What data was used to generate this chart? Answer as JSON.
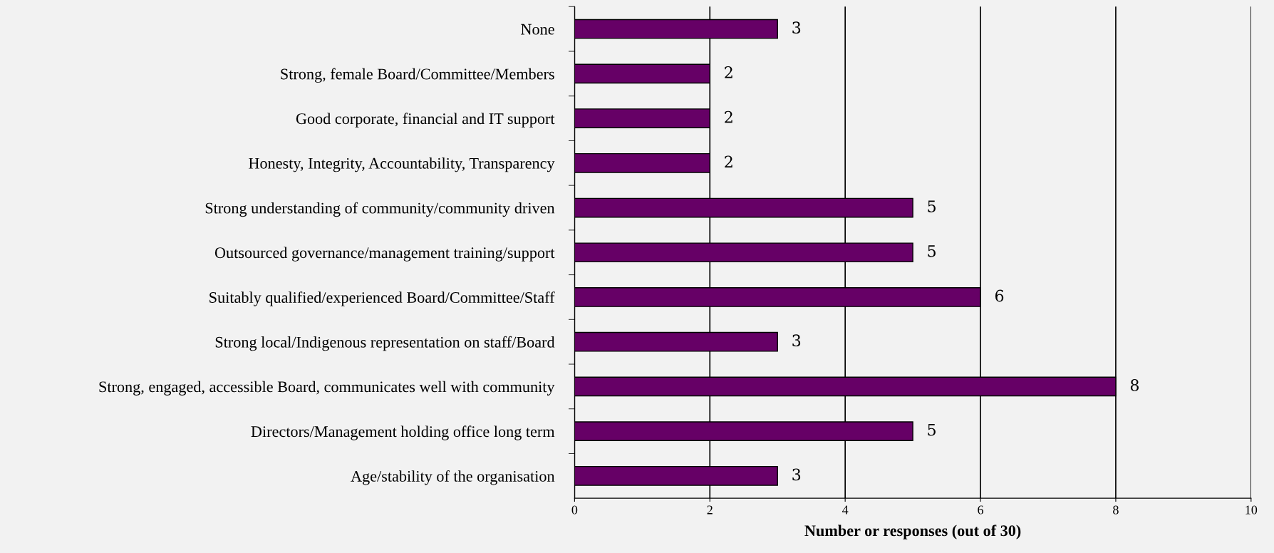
{
  "chart_data": {
    "type": "bar",
    "orientation": "horizontal",
    "xlabel": "Number or responses (out of 30)",
    "categories": [
      "None",
      "Strong, female Board/Committee/Members",
      "Good corporate, financial and IT support",
      "Honesty, Integrity, Accountability, Transparency",
      "Strong understanding of community/community driven",
      "Outsourced governance/management training/support",
      "Suitably qualified/experienced Board/Committee/Staff",
      "Strong local/Indigenous representation on staff/Board",
      "Strong, engaged, accessible Board, communicates well with community",
      "Directors/Management holding office long term",
      "Age/stability of the organisation"
    ],
    "values": [
      3,
      2,
      2,
      2,
      5,
      5,
      6,
      3,
      8,
      5,
      3
    ],
    "color": "#660066",
    "xlim": [
      0,
      10
    ],
    "xticks": [
      0,
      2,
      4,
      6,
      8,
      10
    ],
    "grid": "x",
    "data_labels": true,
    "legend": false
  }
}
